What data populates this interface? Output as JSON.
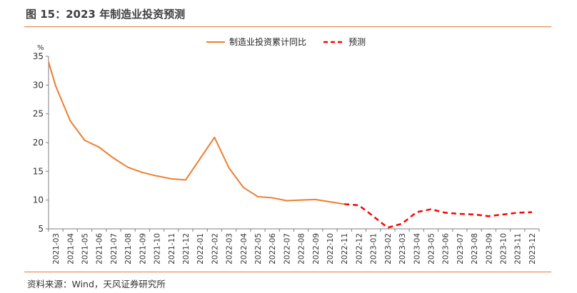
{
  "header": {
    "title": "图 15：2023 年制造业投资预测"
  },
  "footer": {
    "source": "资料来源：Wind，天风证券研究所"
  },
  "colors": {
    "actual": "#ED7D31",
    "forecast": "#FF0000",
    "axis": "#7f7f7f",
    "accent_rule": "#e07b39"
  },
  "chart_data": {
    "type": "line",
    "title": "",
    "xlabel": "",
    "ylabel": "%",
    "ylim": [
      5,
      35
    ],
    "yticks": [
      5,
      10,
      15,
      20,
      25,
      30,
      35
    ],
    "grid": false,
    "legend_position": "top-center",
    "categories": [
      "2021-03",
      "2021-04",
      "2021-05",
      "2021-06",
      "2021-07",
      "2021-08",
      "2021-09",
      "2021-10",
      "2021-11",
      "2021-12",
      "2022-01",
      "2022-02",
      "2022-03",
      "2022-04",
      "2022-05",
      "2022-06",
      "2022-07",
      "2022-08",
      "2022-09",
      "2022-10",
      "2022-11",
      "2022-12",
      "2023-01",
      "2023-02",
      "2023-03",
      "2023-04",
      "2023-05",
      "2023-06",
      "2023-07",
      "2023-08",
      "2023-09",
      "2023-10",
      "2023-11",
      "2023-12"
    ],
    "series": [
      {
        "name": "制造业投资累计同比",
        "style": "solid",
        "values": [
          29.8,
          23.8,
          20.4,
          19.2,
          17.3,
          15.7,
          14.8,
          14.2,
          13.7,
          13.5,
          null,
          20.9,
          15.6,
          12.2,
          10.6,
          10.4,
          9.9,
          10.0,
          10.1,
          9.7,
          9.3,
          null,
          null,
          null,
          null,
          null,
          null,
          null,
          null,
          null,
          null,
          null,
          null,
          null
        ]
      },
      {
        "name": "预测",
        "style": "dashed",
        "values": [
          null,
          null,
          null,
          null,
          null,
          null,
          null,
          null,
          null,
          null,
          null,
          null,
          null,
          null,
          null,
          null,
          null,
          null,
          null,
          null,
          9.3,
          9.1,
          7.2,
          5.2,
          5.9,
          7.9,
          8.4,
          7.8,
          7.6,
          7.5,
          7.2,
          7.5,
          7.8,
          7.9
        ]
      }
    ]
  }
}
